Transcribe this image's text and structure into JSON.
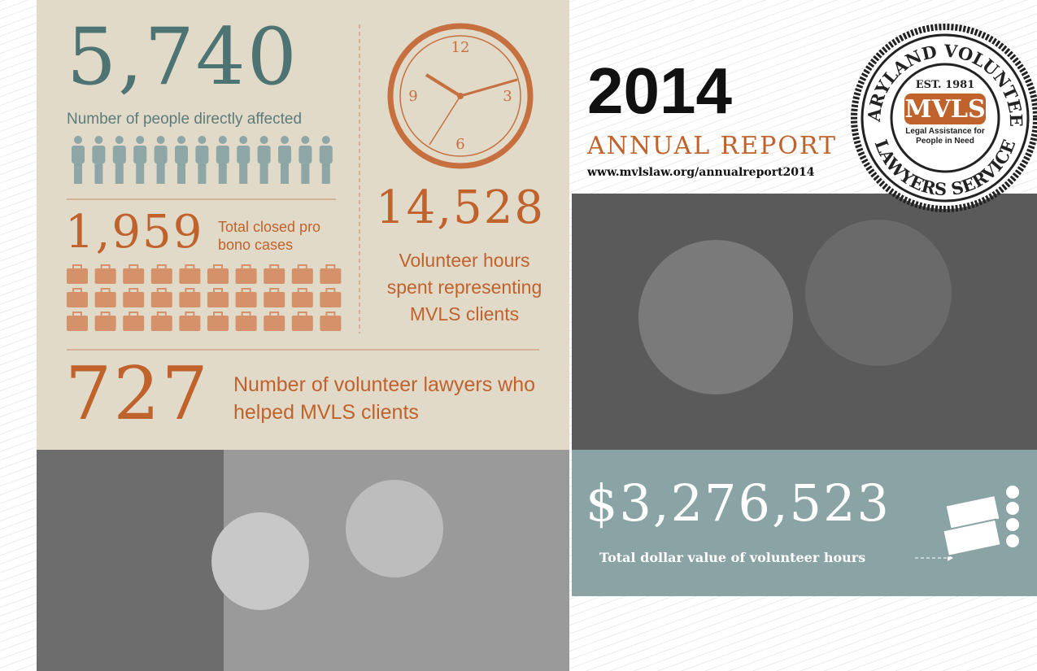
{
  "header": {
    "year": "2014",
    "title": "ANNUAL REPORT",
    "url": "www.mvlslaw.org/annualreport2014"
  },
  "seal": {
    "top": "MARYLAND VOLUNTEER",
    "bottom": "LAWYERS SERVICE",
    "established": "EST. 1981",
    "acronym": "MVLS",
    "tagline": "Legal Assistance for People in Need"
  },
  "clock": {
    "numerals": [
      "12",
      "3",
      "6",
      "9"
    ]
  },
  "stats": {
    "people": {
      "value": "5,740",
      "label": "Number of people directly affected"
    },
    "cases": {
      "value": "1,959",
      "label": "Total closed pro bono cases"
    },
    "hours": {
      "value": "14,528",
      "label": "Volunteer hours spent representing MVLS clients"
    },
    "lawyers": {
      "value": "727",
      "label": "Number of volunteer lawyers who helped MVLS clients"
    },
    "dollars": {
      "value": "$3,276,523",
      "label": "Total dollar value of volunteer hours"
    }
  }
}
